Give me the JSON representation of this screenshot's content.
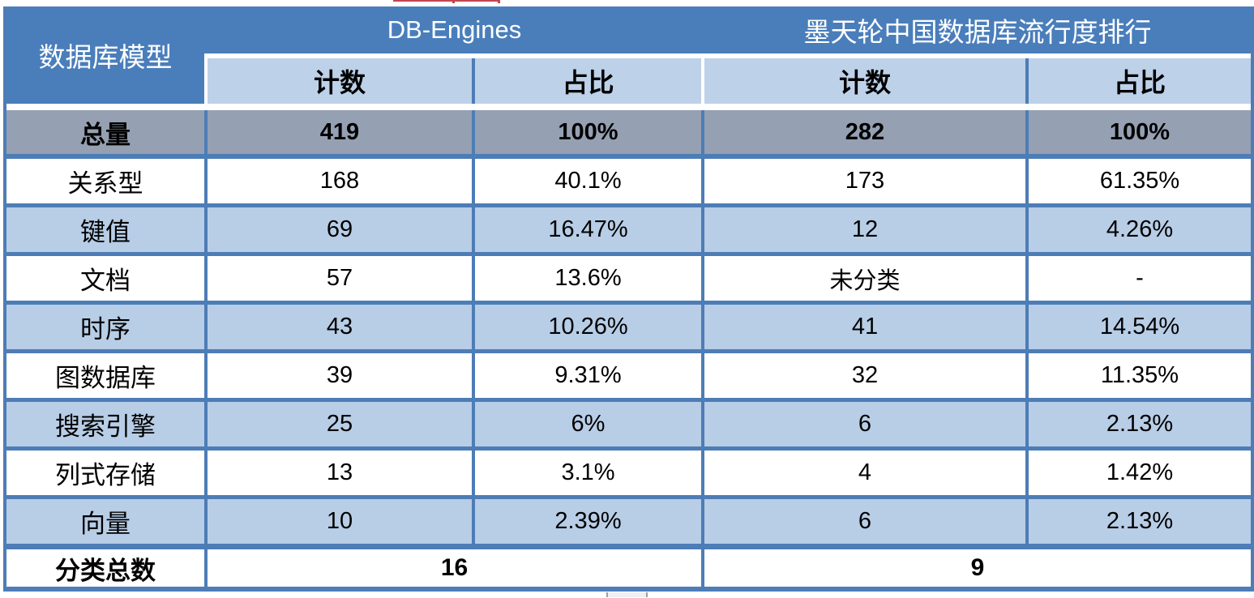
{
  "table": {
    "corner_label": "数据库模型",
    "groups": [
      {
        "label": "DB-Engines",
        "subheaders": [
          "计数",
          "占比"
        ]
      },
      {
        "label": "墨天轮中国数据库流行度排行",
        "subheaders": [
          "计数",
          "占比"
        ]
      }
    ],
    "total_row": {
      "label": "总量",
      "values": [
        "419",
        "100%",
        "282",
        "100%"
      ]
    },
    "rows": [
      {
        "label": "关系型",
        "values": [
          "168",
          "40.1%",
          "173",
          "61.35%"
        ]
      },
      {
        "label": "键值",
        "values": [
          "69",
          "16.47%",
          "12",
          "4.26%"
        ]
      },
      {
        "label": "文档",
        "values": [
          "57",
          "13.6%",
          "未分类",
          "-"
        ]
      },
      {
        "label": "时序",
        "values": [
          "43",
          "10.26%",
          "41",
          "14.54%"
        ]
      },
      {
        "label": "图数据库",
        "values": [
          "39",
          "9.31%",
          "32",
          "11.35%"
        ]
      },
      {
        "label": "搜索引擎",
        "values": [
          "25",
          "6%",
          "6",
          "2.13%"
        ]
      },
      {
        "label": "列式存储",
        "values": [
          "13",
          "3.1%",
          "4",
          "1.42%"
        ]
      },
      {
        "label": "向量",
        "values": [
          "10",
          "2.39%",
          "6",
          "2.13%"
        ]
      }
    ],
    "footer_row": {
      "label": "分类总数",
      "values": [
        "16",
        "9"
      ]
    }
  },
  "chart_data": {
    "type": "table",
    "title": "数据库模型 — DB-Engines vs 墨天轮中国数据库流行度排行",
    "columns": [
      "数据库模型",
      "DB-Engines 计数",
      "DB-Engines 占比",
      "墨天轮 计数",
      "墨天轮 占比"
    ],
    "rows": [
      [
        "总量",
        "419",
        "100%",
        "282",
        "100%"
      ],
      [
        "关系型",
        "168",
        "40.1%",
        "173",
        "61.35%"
      ],
      [
        "键值",
        "69",
        "16.47%",
        "12",
        "4.26%"
      ],
      [
        "文档",
        "57",
        "13.6%",
        "未分类",
        "-"
      ],
      [
        "时序",
        "43",
        "10.26%",
        "41",
        "14.54%"
      ],
      [
        "图数据库",
        "39",
        "9.31%",
        "32",
        "11.35%"
      ],
      [
        "搜索引擎",
        "25",
        "6%",
        "6",
        "2.13%"
      ],
      [
        "列式存储",
        "13",
        "3.1%",
        "4",
        "1.42%"
      ],
      [
        "向量",
        "10",
        "2.39%",
        "6",
        "2.13%"
      ],
      [
        "分类总数",
        "16",
        "",
        "9",
        ""
      ]
    ]
  },
  "colors": {
    "header_blue": "#4a7ebb",
    "border_blue": "#4d7db6",
    "row_light_blue": "#b8cde6",
    "subheader_blue": "#bdd1e9",
    "total_row_gray": "#95a0b2",
    "text": "#000000",
    "red_fragment": "#c04550"
  }
}
